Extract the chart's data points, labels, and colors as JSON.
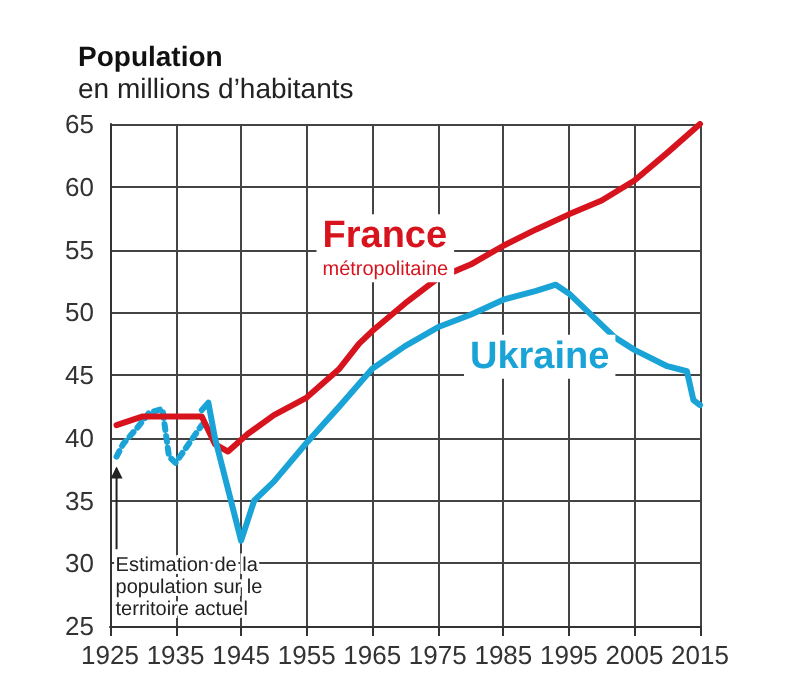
{
  "chart_data": {
    "type": "line",
    "title": "Population",
    "subtitle": "en millions d’habitants",
    "xlim": [
      1925,
      2015
    ],
    "xticks": [
      1925,
      1935,
      1945,
      1955,
      1965,
      1975,
      1985,
      1995,
      2005,
      2015
    ],
    "ylim": [
      25,
      65
    ],
    "yticks": [
      25,
      30,
      35,
      40,
      45,
      50,
      55,
      60,
      65
    ],
    "grid": true,
    "legend": false,
    "marker": "none",
    "annotations": [
      {
        "text": "Estimation de la population sur le territoire actuel",
        "x": 1926,
        "y": 38.5
      }
    ],
    "series": [
      {
        "name": "France métropolitaine",
        "color": "#d7141e",
        "line_style": "solid",
        "x": [
          1926,
          1930,
          1939,
          1941,
          1943,
          1946,
          1950,
          1955,
          1960,
          1963,
          1965,
          1970,
          1975,
          1980,
          1985,
          1990,
          1995,
          2000,
          2005,
          2010,
          2015
        ],
        "values": [
          41,
          41.7,
          41.7,
          39.5,
          38.9,
          40.3,
          41.8,
          43.2,
          45.5,
          47.5,
          48.5,
          50.7,
          52.7,
          53.8,
          55.3,
          56.6,
          57.8,
          58.9,
          60.5,
          62.7,
          65
        ]
      },
      {
        "color": "#1aa3d6",
        "line_style": "dotted",
        "x": [
          1926,
          1927,
          1929,
          1931,
          1933,
          1934,
          1935,
          1937,
          1939
        ],
        "values": [
          38.5,
          39.5,
          40.7,
          42,
          42.3,
          38.5,
          38,
          39.5,
          41
        ]
      },
      {
        "name": "Ukraine",
        "color": "#1aa3d6",
        "line_style": "solid",
        "x": [
          1939,
          1940,
          1941,
          1945,
          1947,
          1950,
          1955,
          1960,
          1965,
          1970,
          1975,
          1980,
          1985,
          1990,
          1993,
          1995,
          2000,
          2002,
          2005,
          2010,
          2013,
          2014,
          2015
        ],
        "values": [
          42.2,
          42.8,
          40,
          31.8,
          35,
          36.5,
          39.6,
          42.5,
          45.5,
          47.3,
          48.8,
          49.8,
          51,
          51.7,
          52.2,
          51.5,
          49,
          48,
          47,
          45.7,
          45.3,
          43,
          42.6
        ]
      }
    ]
  }
}
